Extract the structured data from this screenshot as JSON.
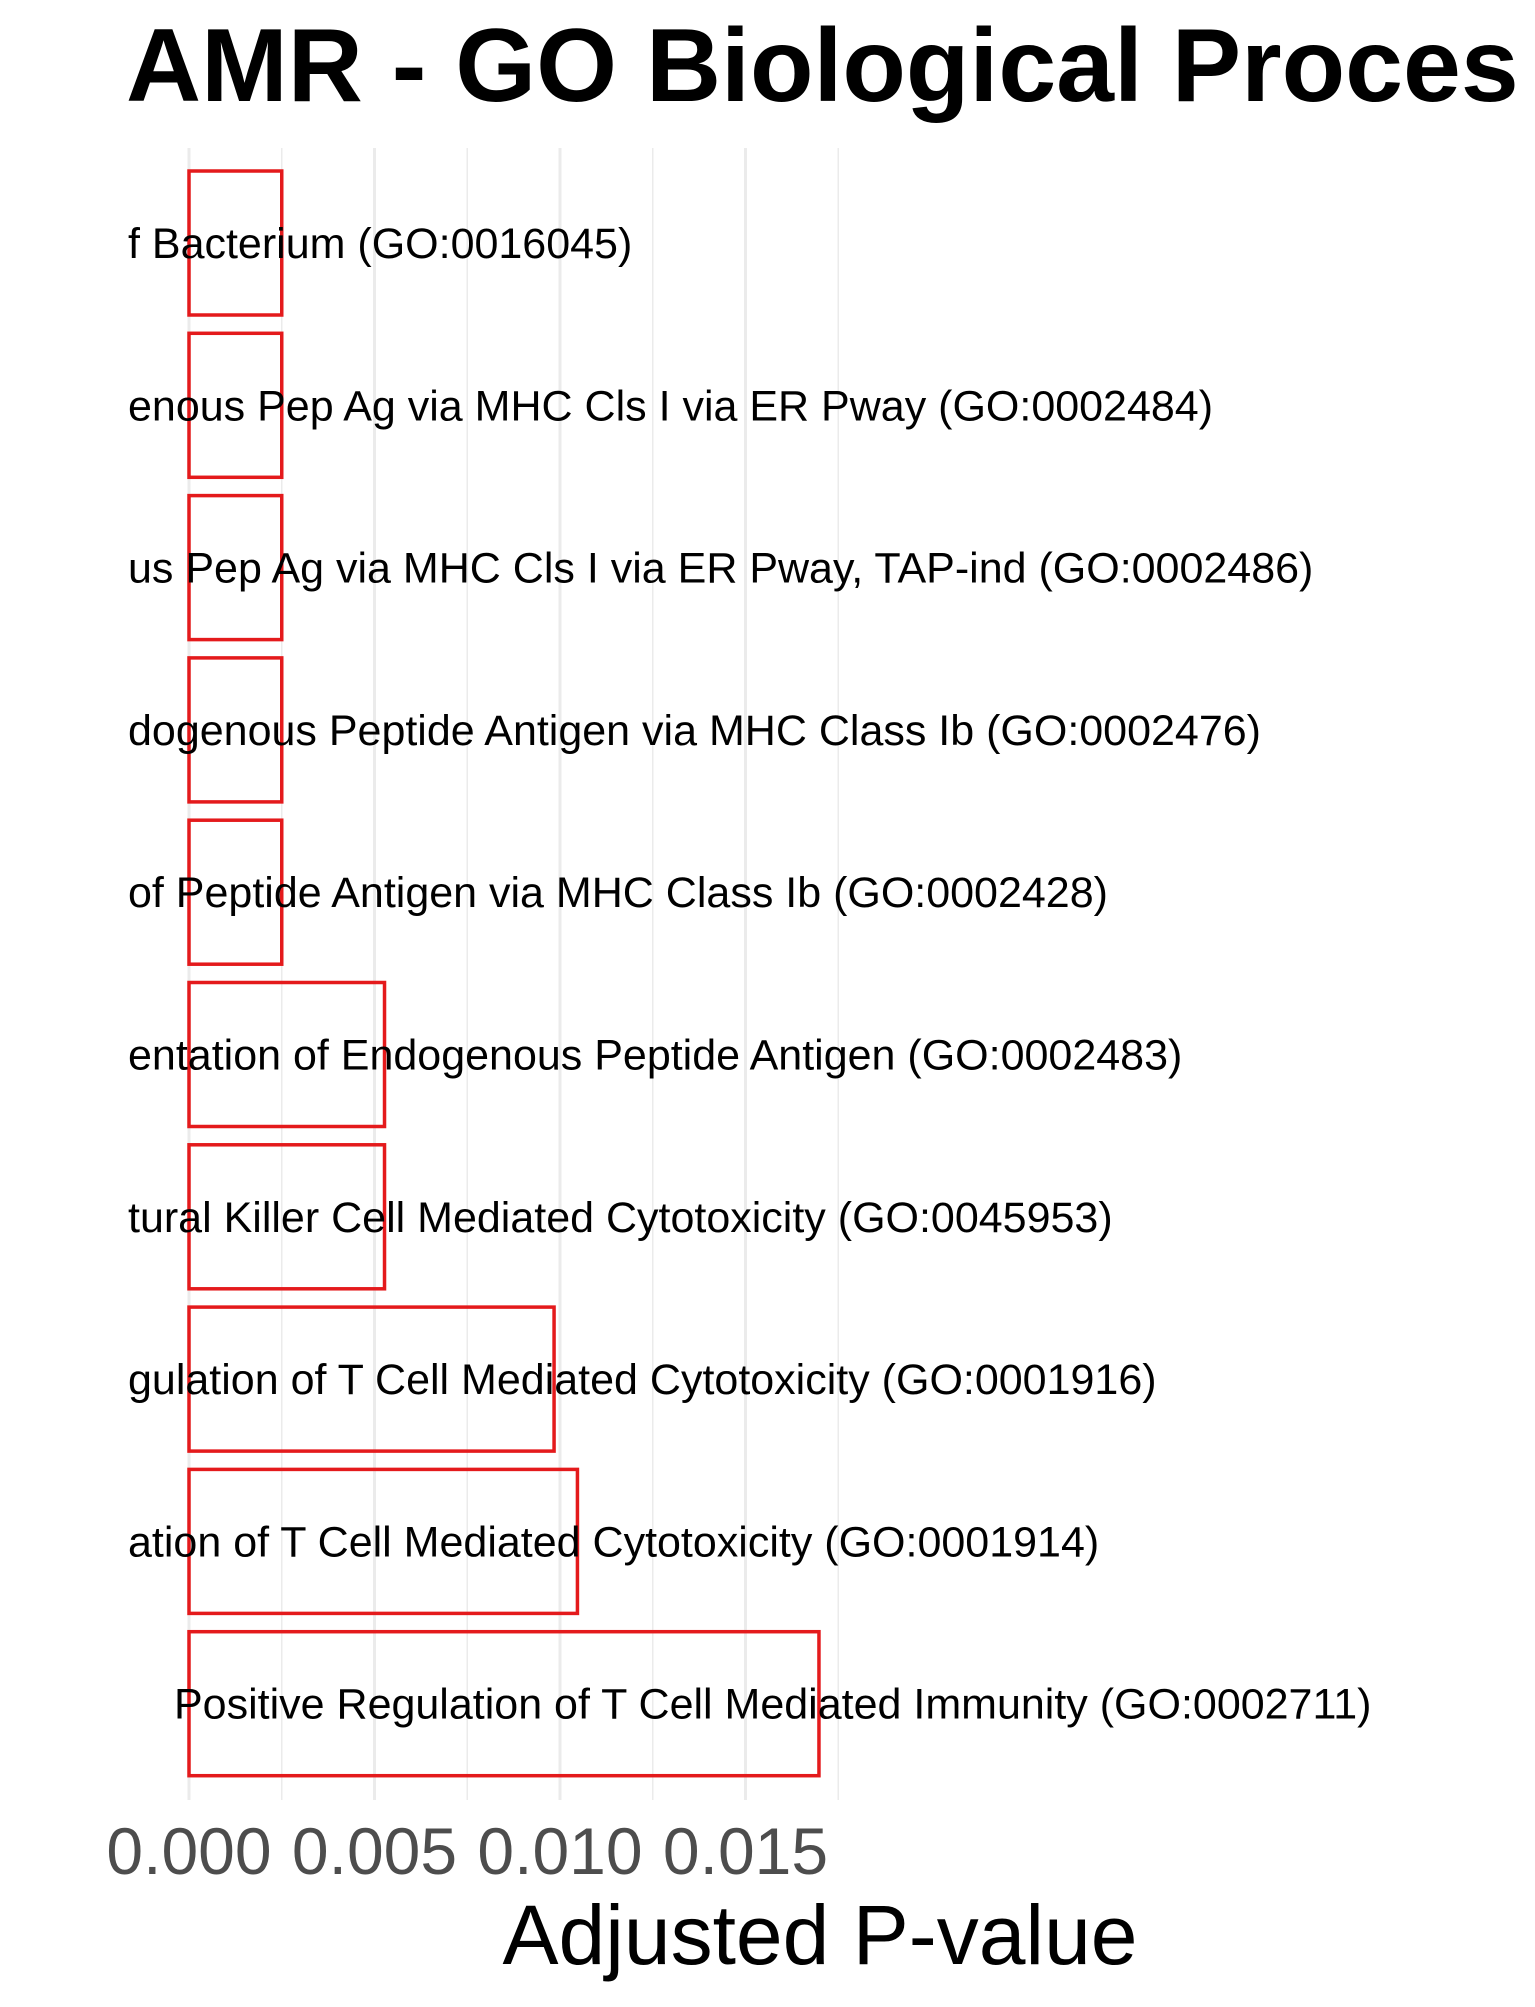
{
  "chart_data": {
    "type": "bar",
    "orientation": "horizontal",
    "title": "AMR  -  GO Biological Proces",
    "xlabel": "Adjusted P-value",
    "ylabel": "",
    "xlim": [
      0,
      0.0175
    ],
    "x_ticks": [
      0.0,
      0.005,
      0.01,
      0.015
    ],
    "x_tick_labels": [
      "0.000",
      "0.005",
      "0.010",
      "0.015"
    ],
    "grid": true,
    "bar_outline_color": "#e41a1c",
    "bar_fill": "none",
    "categories": [
      "f Bacterium (GO:0016045)",
      "enous Pep Ag via MHC Cls I via ER Pway (GO:0002484)",
      "us Pep Ag via MHC Cls I via ER Pway, TAP-ind (GO:0002486)",
      "dogenous Peptide Antigen via MHC Class Ib (GO:0002476)",
      " of Peptide Antigen via MHC Class Ib (GO:0002428)",
      "entation of Endogenous Peptide Antigen (GO:0002483)",
      "tural Killer Cell Mediated Cytotoxicity (GO:0045953)",
      "gulation of T Cell Mediated Cytotoxicity (GO:0001916)",
      "ation of T Cell Mediated Cytotoxicity (GO:0001914)",
      "Positive Regulation of T Cell Mediated Immunity (GO:0002711)"
    ],
    "values": [
      0.0025,
      0.0025,
      0.0025,
      0.0025,
      0.0025,
      0.00527,
      0.00527,
      0.00984,
      0.01047,
      0.01698
    ]
  }
}
